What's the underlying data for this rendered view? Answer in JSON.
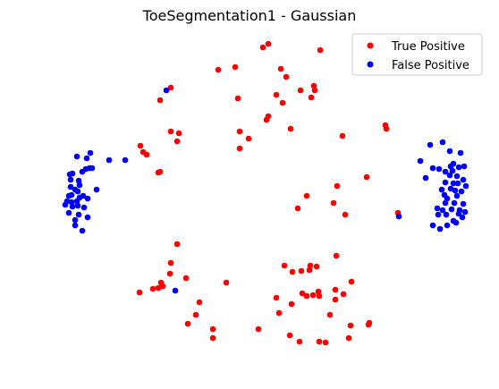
{
  "chart_data": {
    "type": "scatter",
    "title": "ToeSegmentation1 - Gaussian",
    "xlabel": "",
    "ylabel": "",
    "axes_visible": false,
    "grid": false,
    "legend_position": "top-right",
    "series": [
      {
        "name": "True Positive",
        "color": "#ff0000",
        "points": [
          [
            294,
            53
          ],
          [
            300,
            49
          ],
          [
            358,
            56
          ],
          [
            244,
            78
          ],
          [
            263,
            75
          ],
          [
            314,
            77
          ],
          [
            320,
            86
          ],
          [
            191,
            98
          ],
          [
            179,
            112
          ],
          [
            266,
            110
          ],
          [
            309,
            106
          ],
          [
            336,
            101
          ],
          [
            351,
            96
          ],
          [
            352,
            101
          ],
          [
            348,
            109
          ],
          [
            316,
            115
          ],
          [
            300,
            130
          ],
          [
            298,
            134
          ],
          [
            191,
            147
          ],
          [
            200,
            149
          ],
          [
            198,
            158
          ],
          [
            268,
            147
          ],
          [
            278,
            155
          ],
          [
            268,
            166
          ],
          [
            325,
            144
          ],
          [
            383,
            152
          ],
          [
            431,
            140
          ],
          [
            432,
            144
          ],
          [
            157,
            163
          ],
          [
            160,
            170
          ],
          [
            164,
            173
          ],
          [
            177,
            193
          ],
          [
            179,
            192
          ],
          [
            410,
            198
          ],
          [
            377,
            208
          ],
          [
            343,
            219
          ],
          [
            373,
            227
          ],
          [
            333,
            233
          ],
          [
            386,
            240
          ],
          [
            445,
            238
          ],
          [
            198,
            273
          ],
          [
            191,
            294
          ],
          [
            190,
            306
          ],
          [
            180,
            316
          ],
          [
            182,
            320
          ],
          [
            171,
            323
          ],
          [
            177,
            322
          ],
          [
            156,
            327
          ],
          [
            208,
            311
          ],
          [
            253,
            316
          ],
          [
            223,
            338
          ],
          [
            219,
            352
          ],
          [
            210,
            362
          ],
          [
            238,
            368
          ],
          [
            238,
            378
          ],
          [
            289,
            368
          ],
          [
            318,
            297
          ],
          [
            327,
            304
          ],
          [
            337,
            303
          ],
          [
            346,
            302
          ],
          [
            347,
            297
          ],
          [
            354,
            298
          ],
          [
            376,
            286
          ],
          [
            393,
            315
          ],
          [
            384,
            329
          ],
          [
            375,
            324
          ],
          [
            375,
            335
          ],
          [
            356,
            326
          ],
          [
            357,
            331
          ],
          [
            350,
            330
          ],
          [
            343,
            331
          ],
          [
            338,
            328
          ],
          [
            326,
            340
          ],
          [
            309,
            333
          ],
          [
            312,
            350
          ],
          [
            369,
            352
          ],
          [
            392,
            364
          ],
          [
            412,
            363
          ],
          [
            413,
            361
          ],
          [
            390,
            378
          ],
          [
            324,
            375
          ],
          [
            335,
            382
          ],
          [
            357,
            382
          ],
          [
            364,
            383
          ]
        ]
      },
      {
        "name": "False Positive",
        "color": "#0000ff",
        "points": [
          [
            186,
            101
          ],
          [
            122,
            179
          ],
          [
            140,
            179
          ],
          [
            101,
            171
          ],
          [
            86,
            175
          ],
          [
            97,
            177
          ],
          [
            100,
            188
          ],
          [
            103,
            188
          ],
          [
            96,
            189
          ],
          [
            92,
            192
          ],
          [
            81,
            194
          ],
          [
            78,
            195
          ],
          [
            79,
            201
          ],
          [
            88,
            202
          ],
          [
            89,
            207
          ],
          [
            79,
            209
          ],
          [
            84,
            212
          ],
          [
            108,
            212
          ],
          [
            77,
            219
          ],
          [
            89,
            221
          ],
          [
            98,
            222
          ],
          [
            75,
            225
          ],
          [
            80,
            226
          ],
          [
            73,
            229
          ],
          [
            87,
            230
          ],
          [
            81,
            231
          ],
          [
            94,
            232
          ],
          [
            77,
            238
          ],
          [
            88,
            240
          ],
          [
            98,
            243
          ],
          [
            84,
            246
          ],
          [
            84,
            252
          ],
          [
            92,
            258
          ],
          [
            87,
            214
          ],
          [
            93,
            219
          ],
          [
            86,
            225
          ],
          [
            80,
            218
          ],
          [
            196,
            325
          ],
          [
            446,
            242
          ],
          [
            481,
            162
          ],
          [
            495,
            159
          ],
          [
            503,
            169
          ],
          [
            515,
            171
          ],
          [
            470,
            180
          ],
          [
            484,
            188
          ],
          [
            476,
            199
          ],
          [
            491,
            189
          ],
          [
            498,
            192
          ],
          [
            507,
            183
          ],
          [
            513,
            187
          ],
          [
            519,
            186
          ],
          [
            504,
            186
          ],
          [
            506,
            191
          ],
          [
            503,
            196
          ],
          [
            511,
            197
          ],
          [
            518,
            201
          ],
          [
            498,
            204
          ],
          [
            507,
            205
          ],
          [
            512,
            205
          ],
          [
            521,
            208
          ],
          [
            494,
            212
          ],
          [
            504,
            211
          ],
          [
            509,
            213
          ],
          [
            516,
            214
          ],
          [
            511,
            219
          ],
          [
            500,
            222
          ],
          [
            498,
            227
          ],
          [
            508,
            227
          ],
          [
            518,
            228
          ],
          [
            489,
            233
          ],
          [
            495,
            235
          ],
          [
            505,
            234
          ],
          [
            514,
            235
          ],
          [
            520,
            237
          ],
          [
            490,
            240
          ],
          [
            499,
            240
          ],
          [
            513,
            239
          ],
          [
            484,
            252
          ],
          [
            492,
            256
          ],
          [
            510,
            249
          ],
          [
            500,
            252
          ],
          [
            507,
            247
          ],
          [
            517,
            243
          ],
          [
            497,
            218
          ]
        ]
      }
    ]
  }
}
